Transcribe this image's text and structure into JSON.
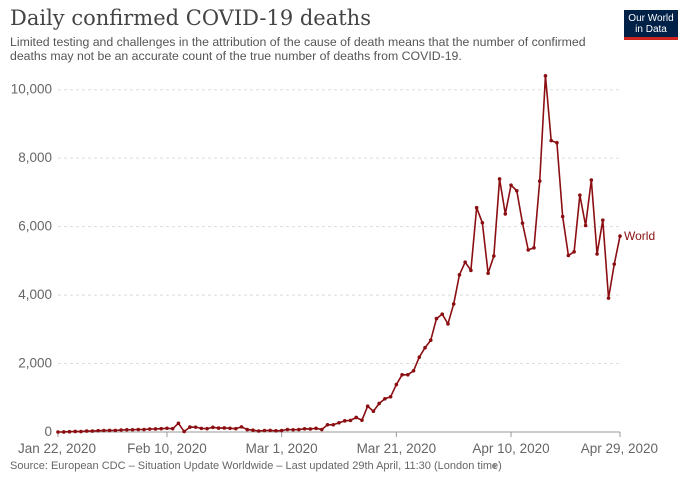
{
  "header": {
    "title": "Daily confirmed COVID-19 deaths",
    "subtitle": "Limited testing and challenges in the attribution of the cause of death means that the number of confirmed deaths may not be an accurate count of the true number of deaths from COVID-19.",
    "logo_line1": "Our World",
    "logo_line2": "in Data"
  },
  "footer": {
    "source": "Source: European CDC – Situation Update Worldwide – Last updated 29th April, 11:30 (London time)"
  },
  "colors": {
    "series": "#8b0f12",
    "grid": "#dddddd",
    "logo_bg": "#002147",
    "logo_accent": "#ce261e"
  },
  "chart_data": {
    "type": "line",
    "title": "Daily confirmed COVID-19 deaths",
    "ylim": [
      0,
      10400
    ],
    "y_ticks": [
      0,
      2000,
      4000,
      6000,
      8000,
      10000
    ],
    "y_tick_labels": [
      "0",
      "2,000",
      "4,000",
      "6,000",
      "8,000",
      "10,000"
    ],
    "x_start": "2020-01-22",
    "x_end": "2020-04-29",
    "x_tick_dates": [
      "2020-01-22",
      "2020-02-10",
      "2020-03-01",
      "2020-03-21",
      "2020-04-10",
      "2020-04-29"
    ],
    "x_tick_labels": [
      "Jan 22, 2020",
      "Feb 10, 2020",
      "Mar 1, 2020",
      "Mar 21, 2020",
      "Apr 10, 2020",
      "Apr 29, 2020"
    ],
    "grid": true,
    "series": [
      {
        "name": "World",
        "values": [
          0,
          1,
          8,
          16,
          14,
          26,
          26,
          38,
          43,
          46,
          45,
          57,
          64,
          66,
          73,
          73,
          86,
          89,
          97,
          108,
          97,
          254,
          13,
          143,
          142,
          106,
          98,
          136,
          115,
          118,
          109,
          97,
          150,
          71,
          52,
          29,
          44,
          47,
          35,
          42,
          73,
          66,
          70,
          94,
          89,
          107,
          72,
          211,
          211,
          270,
          326,
          339,
          424,
          344,
          753,
          607,
          833,
          970,
          1028,
          1386,
          1670,
          1671,
          1789,
          2186,
          2462,
          2681,
          3313,
          3442,
          3159,
          3741,
          4591,
          4961,
          4723,
          6552,
          6112,
          4638,
          5140,
          7392,
          6371,
          7211,
          7048,
          6101,
          5320,
          5381,
          7330,
          10405,
          8512,
          8451,
          6294,
          5158,
          5265,
          6920,
          6032,
          7362,
          5200,
          6188,
          3911,
          4903,
          5723
        ]
      }
    ]
  }
}
